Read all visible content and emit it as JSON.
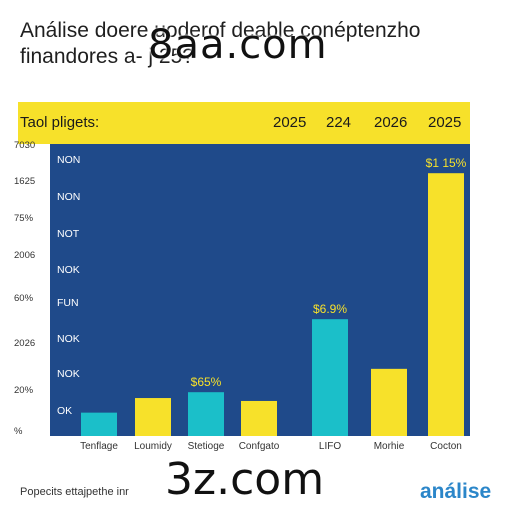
{
  "title_line1": "Análise doere​ uoderof deable conéptenzho",
  "title_line2": "finandores a-​​​​​​​​​​​​​​​​​​​​​​​ j​​​​​​​​​​ 25?",
  "watermark_top": "8aa.com",
  "watermark_bottom": "3z.com",
  "header": {
    "label": "Taol pligets:",
    "years": [
      "2025",
      "224",
      "2026",
      "2025"
    ]
  },
  "caption": "Popecits ettajpethe inr",
  "brand": "análise",
  "colors": {
    "yellow": "#f7e12a",
    "teal": "#1bbfc9",
    "blue_panel": "#1f4a8a",
    "brand_blue": "#2b86c9"
  },
  "chart_data": {
    "type": "bar",
    "categories": [
      "Tenflage",
      "Loumidy",
      "Stetioge",
      "Confgato",
      "LIFO",
      "Morhie",
      "Cocton"
    ],
    "values": [
      8,
      13,
      15,
      12,
      40,
      23,
      90
    ],
    "bar_colors": [
      "#1bbfc9",
      "#f7e12a",
      "#1bbfc9",
      "#f7e12a",
      "#1bbfc9",
      "#f7e12a",
      "#f7e12a"
    ],
    "value_labels": [
      "",
      "",
      "$65%",
      "",
      "$6.9%",
      "",
      "$1 15%"
    ],
    "yticks": [
      "7030",
      "1625",
      "75%",
      "2006",
      "60%",
      "2026",
      "20%",
      "%"
    ],
    "row_labels": [
      "NON",
      "NON",
      "NOT",
      "NOK",
      "FUN",
      "NOK",
      "NOK",
      "OK"
    ]
  }
}
